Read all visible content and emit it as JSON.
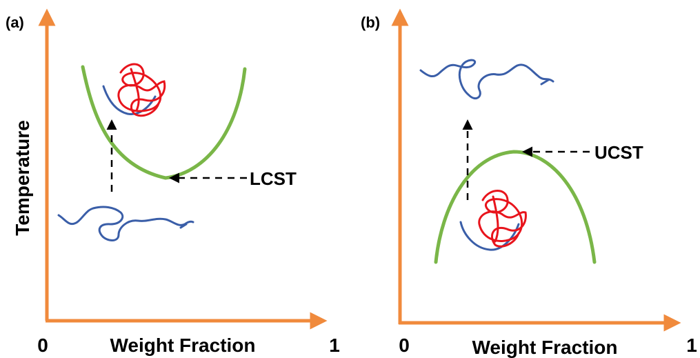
{
  "panels": [
    {
      "label": "(a)",
      "y_axis_label": "Temperature",
      "x_axis_label": "Weight Fraction",
      "x_start": "0",
      "x_end": "1",
      "annotation": "LCST"
    },
    {
      "label": "(b)",
      "x_axis_label": "Weight Fraction",
      "x_start": "0",
      "x_end": "1",
      "annotation": "UCST"
    }
  ]
}
